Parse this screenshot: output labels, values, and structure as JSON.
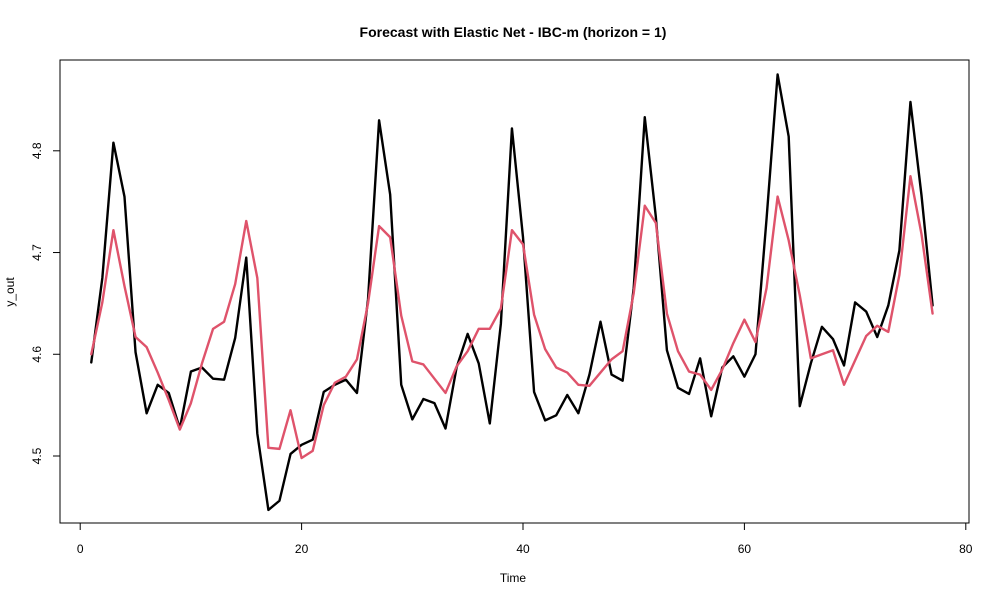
{
  "chart_data": {
    "type": "line",
    "title": "Forecast with Elastic Net - IBC-m (horizon = 1)",
    "xlabel": "Time",
    "ylabel": "y_out",
    "xlim": [
      0,
      80
    ],
    "ylim": [
      4.44,
      4.88
    ],
    "xticks": [
      0,
      20,
      40,
      60,
      80
    ],
    "yticks": [
      4.5,
      4.6,
      4.7,
      4.8
    ],
    "grid": false,
    "legend": "none",
    "x": [
      1,
      2,
      3,
      4,
      5,
      6,
      7,
      8,
      9,
      10,
      11,
      12,
      13,
      14,
      15,
      16,
      17,
      18,
      19,
      20,
      21,
      22,
      23,
      24,
      25,
      26,
      27,
      28,
      29,
      30,
      31,
      32,
      33,
      34,
      35,
      36,
      37,
      38,
      39,
      40,
      41,
      42,
      43,
      44,
      45,
      46,
      47,
      48,
      49,
      50,
      51,
      52,
      53,
      54,
      55,
      56,
      57,
      58,
      59,
      60,
      61,
      62,
      63,
      64,
      65,
      66,
      67,
      68,
      69,
      70,
      71,
      72,
      73,
      74,
      75,
      76,
      77
    ],
    "series": [
      {
        "color": "#000000",
        "values": [
          4.592,
          4.675,
          4.808,
          4.755,
          4.602,
          4.542,
          4.57,
          4.562,
          4.527,
          4.583,
          4.587,
          4.576,
          4.575,
          4.616,
          4.695,
          4.522,
          4.447,
          4.456,
          4.502,
          4.511,
          4.516,
          4.563,
          4.57,
          4.575,
          4.562,
          4.654,
          4.83,
          4.757,
          4.57,
          4.536,
          4.556,
          4.552,
          4.527,
          4.587,
          4.62,
          4.591,
          4.532,
          4.63,
          4.822,
          4.715,
          4.563,
          4.535,
          4.54,
          4.56,
          4.542,
          4.58,
          4.632,
          4.58,
          4.574,
          4.665,
          4.833,
          4.735,
          4.604,
          4.567,
          4.561,
          4.596,
          4.539,
          4.587,
          4.598,
          4.578,
          4.6,
          4.733,
          4.875,
          4.814,
          4.549,
          4.591,
          4.627,
          4.615,
          4.589,
          4.651,
          4.642,
          4.617,
          4.648,
          4.702,
          4.848,
          4.756,
          4.648
        ]
      },
      {
        "color": "#DF536B",
        "values": [
          4.6,
          4.651,
          4.722,
          4.667,
          4.617,
          4.607,
          4.582,
          4.555,
          4.526,
          4.552,
          4.591,
          4.625,
          4.632,
          4.669,
          4.731,
          4.675,
          4.508,
          4.507,
          4.545,
          4.498,
          4.505,
          4.55,
          4.572,
          4.578,
          4.595,
          4.65,
          4.726,
          4.715,
          4.638,
          4.593,
          4.59,
          4.576,
          4.562,
          4.588,
          4.603,
          4.625,
          4.625,
          4.645,
          4.722,
          4.708,
          4.639,
          4.605,
          4.587,
          4.582,
          4.57,
          4.569,
          4.582,
          4.595,
          4.603,
          4.66,
          4.746,
          4.729,
          4.64,
          4.603,
          4.583,
          4.58,
          4.565,
          4.585,
          4.611,
          4.634,
          4.612,
          4.665,
          4.755,
          4.712,
          4.658,
          4.596,
          4.6,
          4.604,
          4.57,
          4.594,
          4.618,
          4.628,
          4.622,
          4.678,
          4.775,
          4.718,
          4.64
        ]
      }
    ]
  }
}
